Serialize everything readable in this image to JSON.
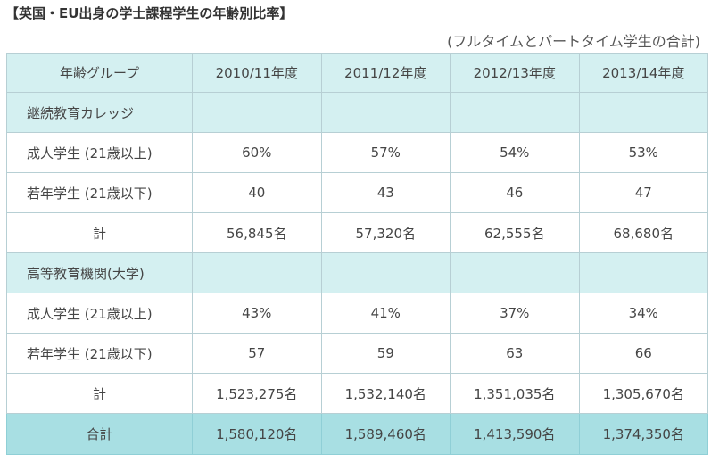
{
  "title": "【英国・EU出身の学士課程学生の年齢別比率】",
  "note": "(フルタイムとパートタイム学生の合計)",
  "table": {
    "header": {
      "label": "年齢グループ",
      "years": [
        "2010/11年度",
        "2011/12年度",
        "2012/13年度",
        "2013/14年度"
      ]
    },
    "sections": [
      {
        "name": "継続教育カレッジ",
        "rows": [
          {
            "label": "成人学生 (21歳以上)",
            "values": [
              "60%",
              "57%",
              "54%",
              "53%"
            ]
          },
          {
            "label": "若年学生 (21歳以下)",
            "values": [
              "40",
              "43",
              "46",
              "47"
            ]
          },
          {
            "label": "計",
            "values": [
              "56,845名",
              "57,320名",
              "62,555名",
              "68,680名"
            ]
          }
        ]
      },
      {
        "name": "高等教育機関(大学)",
        "rows": [
          {
            "label": "成人学生 (21歳以上)",
            "values": [
              "43%",
              "41%",
              "37%",
              "34%"
            ]
          },
          {
            "label": "若年学生 (21歳以下)",
            "values": [
              "57",
              "59",
              "63",
              "66"
            ]
          },
          {
            "label": "計",
            "values": [
              "1,523,275名",
              "1,532,140名",
              "1,351,035名",
              "1,305,670名"
            ]
          }
        ]
      }
    ],
    "grand_total": {
      "label": "合計",
      "values": [
        "1,580,120名",
        "1,589,460名",
        "1,413,590名",
        "1,374,350名"
      ]
    }
  },
  "colors": {
    "header_bg": "#d4f0f1",
    "section_bg": "#d4f0f1",
    "grand_total_bg": "#a8dfe3",
    "border": "#b7cfd4"
  }
}
